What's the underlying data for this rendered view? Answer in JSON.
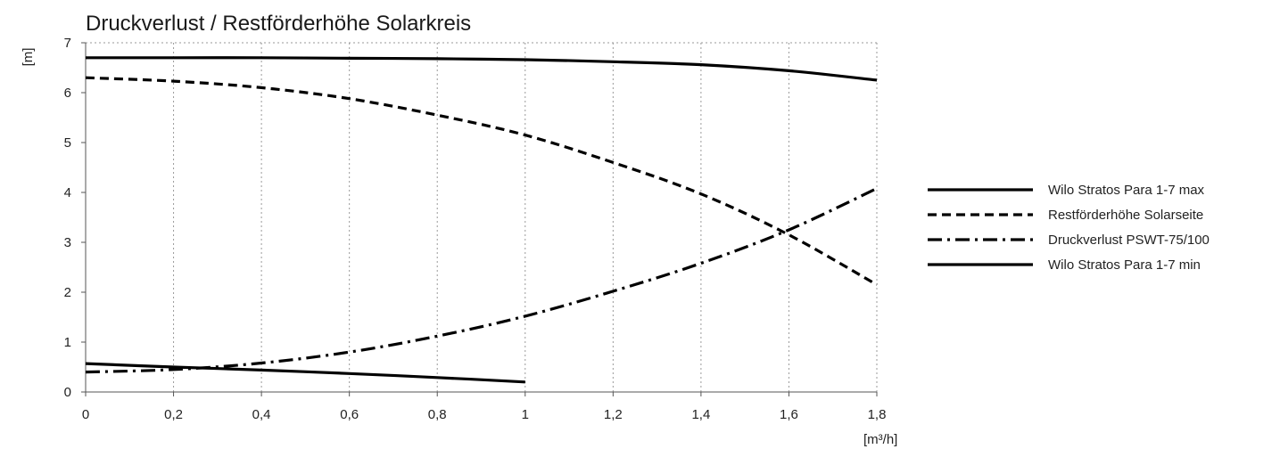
{
  "chart_data": {
    "type": "line",
    "title": "Druckverlust / Restförderhöhe Solarkreis",
    "xlabel": "[m³/h]",
    "ylabel": "[m]",
    "xlim": [
      0,
      1.8
    ],
    "ylim": [
      0,
      7
    ],
    "x_ticks": [
      0,
      0.2,
      0.4,
      0.6,
      0.8,
      1.0,
      1.2,
      1.4,
      1.6,
      1.8
    ],
    "x_tick_labels": [
      "0",
      "0,2",
      "0,4",
      "0,6",
      "0,8",
      "1",
      "1,2",
      "1,4",
      "1,6",
      "1,8"
    ],
    "y_ticks": [
      0,
      1,
      2,
      3,
      4,
      5,
      6,
      7
    ],
    "y_tick_labels": [
      "0",
      "1",
      "2",
      "3",
      "4",
      "5",
      "6",
      "7"
    ],
    "grid": "vertical dotted",
    "legend_position": "right",
    "series": [
      {
        "name": "Wilo Stratos Para 1-7 max",
        "style": "solid",
        "color": "#000000",
        "x": [
          0,
          0.2,
          0.4,
          0.6,
          0.8,
          1.0,
          1.2,
          1.4,
          1.6,
          1.8
        ],
        "y": [
          6.7,
          6.7,
          6.7,
          6.69,
          6.68,
          6.66,
          6.62,
          6.56,
          6.44,
          6.25
        ]
      },
      {
        "name": "Restförderhöhe Solarseite",
        "style": "dashed",
        "color": "#000000",
        "x": [
          0,
          0.2,
          0.4,
          0.6,
          0.8,
          1.0,
          1.2,
          1.4,
          1.6,
          1.8
        ],
        "y": [
          6.3,
          6.23,
          6.1,
          5.88,
          5.55,
          5.15,
          4.6,
          3.97,
          3.15,
          2.15
        ]
      },
      {
        "name": "Druckverlust PSWT-75/100",
        "style": "dash-dot",
        "color": "#000000",
        "x": [
          0,
          0.2,
          0.4,
          0.6,
          0.8,
          1.0,
          1.2,
          1.4,
          1.6,
          1.8
        ],
        "y": [
          0.4,
          0.45,
          0.58,
          0.8,
          1.12,
          1.52,
          2.02,
          2.58,
          3.25,
          4.08
        ]
      },
      {
        "name": "Wilo Stratos Para 1-7 min",
        "style": "solid",
        "color": "#000000",
        "x": [
          0,
          0.2,
          0.4,
          0.6,
          0.8,
          1.0
        ],
        "y": [
          0.57,
          0.5,
          0.44,
          0.37,
          0.29,
          0.2
        ]
      }
    ]
  }
}
